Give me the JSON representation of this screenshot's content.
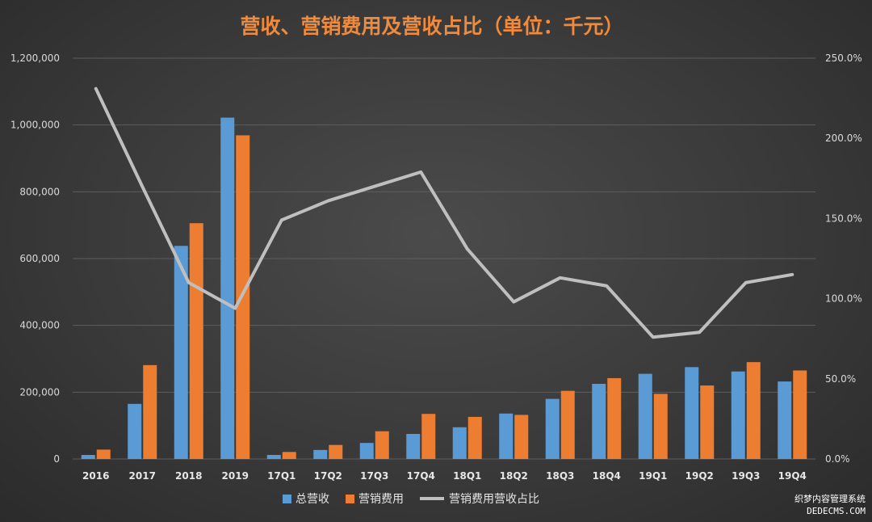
{
  "chart_data": {
    "type": "bar",
    "title": "营收、营销费用及营收占比（单位：千元）",
    "categories": [
      "2016",
      "2017",
      "2018",
      "2019",
      "17Q1",
      "17Q2",
      "17Q3",
      "17Q4",
      "18Q1",
      "18Q2",
      "18Q3",
      "18Q4",
      "19Q1",
      "19Q2",
      "19Q3",
      "19Q4"
    ],
    "series": [
      {
        "name": "总营收",
        "kind": "bar",
        "axis": "left",
        "color": "#5b9bd5",
        "values": [
          12000,
          165000,
          638000,
          1022000,
          12000,
          27000,
          48000,
          75000,
          95000,
          136000,
          180000,
          225000,
          255000,
          275000,
          262000,
          232000
        ]
      },
      {
        "name": "营销费用",
        "kind": "bar",
        "axis": "left",
        "color": "#ed7d31",
        "values": [
          28000,
          281000,
          706000,
          969000,
          21000,
          42000,
          83000,
          135000,
          126000,
          132000,
          204000,
          242000,
          195000,
          220000,
          290000,
          265000
        ]
      },
      {
        "name": "营销费用营收占比",
        "kind": "line",
        "axis": "right",
        "color": "#bfbfbf",
        "values": [
          231,
          170,
          110,
          94,
          149,
          161,
          170,
          179,
          131,
          98,
          113,
          108,
          76,
          79,
          110,
          115
        ]
      }
    ],
    "y_left": {
      "min": 0,
      "max": 1200000,
      "step": 200000,
      "tick_labels": [
        "0",
        "200,000",
        "400,000",
        "600,000",
        "800,000",
        "1,000,000",
        "1,200,000"
      ]
    },
    "y_right": {
      "min": 0,
      "max": 250,
      "step": 50,
      "tick_labels": [
        "0.0%",
        "50.0%",
        "100.0%",
        "150.0%",
        "200.0%",
        "250.0%"
      ]
    },
    "grid": true,
    "legend_position": "bottom"
  },
  "watermark": {
    "line1": "织梦内容管理系统",
    "line2": "DEDECMS.COM"
  }
}
